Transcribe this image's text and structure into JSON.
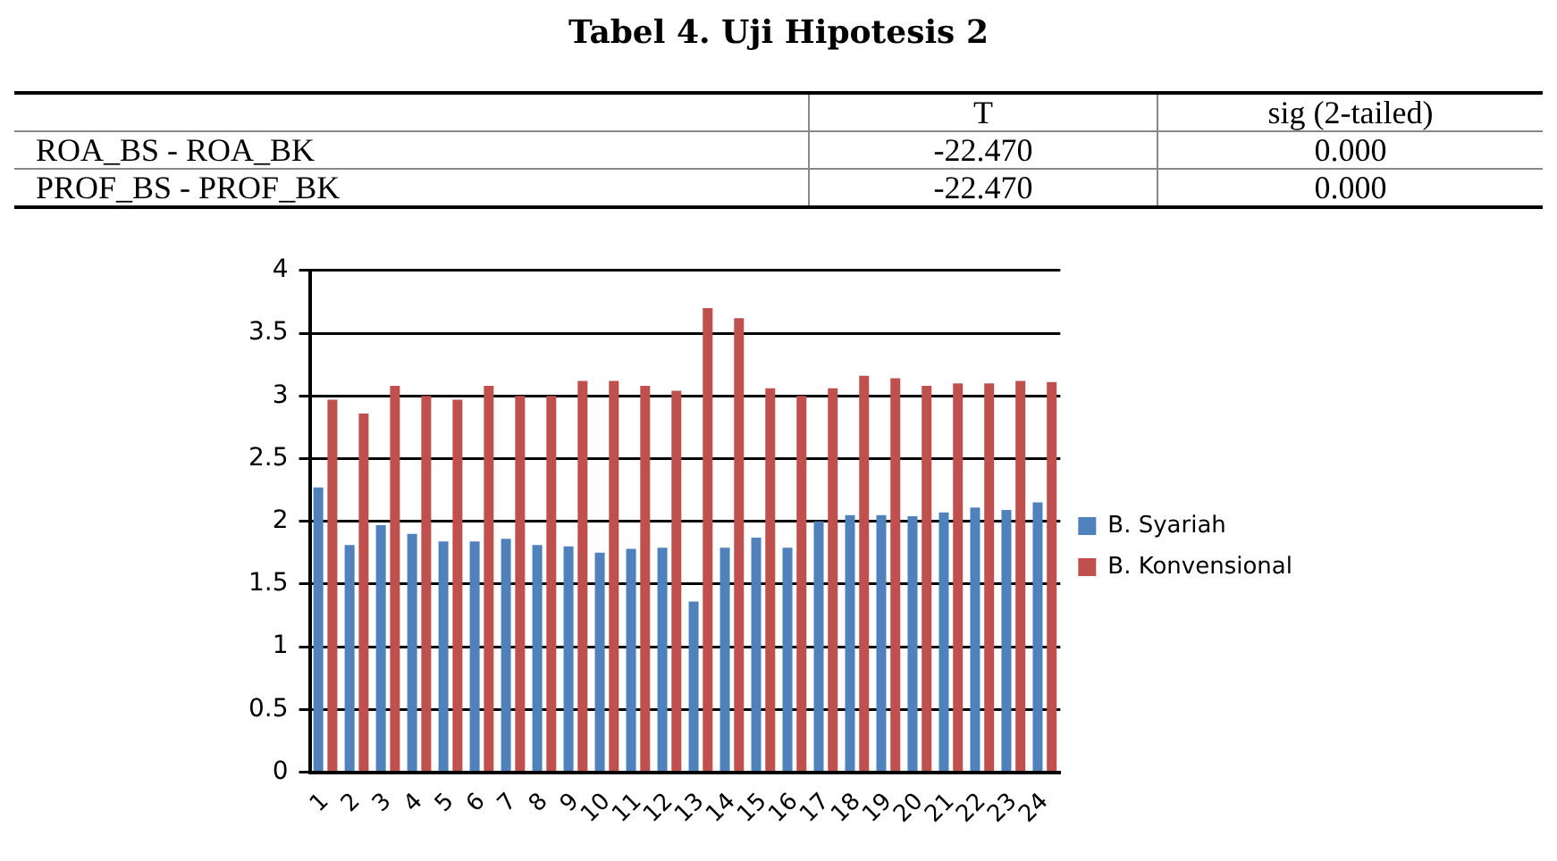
{
  "chart_data": {
    "type": "bar",
    "title": "Tabel 4. Uji Hipotesis 2",
    "annotations": [
      "T",
      "sig (2-tailed)",
      "ROA_BS - ROA_BK",
      "-22.470",
      "0.000",
      "PROF_BS - PROF_BK",
      "-22.470",
      "0.000"
    ],
    "categories": [
      "1",
      "2",
      "3",
      "4",
      "5",
      "6",
      "7",
      "8",
      "9",
      "10",
      "11",
      "12",
      "13",
      "14",
      "15",
      "16",
      "17",
      "18",
      "19",
      "20",
      "21",
      "22",
      "23",
      "24"
    ],
    "series": [
      {
        "name": "B. Syariah",
        "color": "#4f81bd",
        "values": [
          2.27,
          1.81,
          1.97,
          1.9,
          1.84,
          1.84,
          1.86,
          1.81,
          1.8,
          1.75,
          1.78,
          1.79,
          1.36,
          1.79,
          1.87,
          1.79,
          2.0,
          2.05,
          2.05,
          2.04,
          2.07,
          2.11,
          2.09,
          2.15
        ]
      },
      {
        "name": "B. Konvensional",
        "color": "#c0504d",
        "values": [
          2.97,
          2.86,
          3.08,
          3.0,
          2.97,
          3.08,
          3.0,
          3.0,
          3.12,
          3.12,
          3.08,
          3.04,
          3.7,
          3.62,
          3.06,
          3.0,
          3.06,
          3.16,
          3.14,
          3.08,
          3.1,
          3.1,
          3.12,
          3.11
        ]
      }
    ],
    "ylim": [
      0,
      4
    ],
    "yticks": [
      0,
      0.5,
      1,
      1.5,
      2,
      2.5,
      3,
      3.5,
      4
    ],
    "grid": "y",
    "legend": "right"
  }
}
